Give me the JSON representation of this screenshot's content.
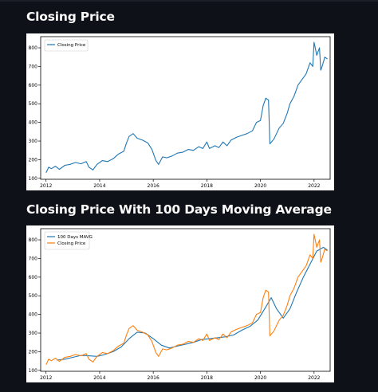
{
  "page": {
    "background": "#0e1117"
  },
  "headings": {
    "chart1": "Closing Price",
    "chart2": "Closing Price With 100 Days Moving Average"
  },
  "colors": {
    "blue": "#1f77b4",
    "orange": "#ff7f0e"
  },
  "chart_data": [
    {
      "type": "line",
      "title": "",
      "xlabel": "",
      "ylabel": "",
      "x_ticks": [
        "2012",
        "2014",
        "2016",
        "2018",
        "2020",
        "2022"
      ],
      "y_ticks": [
        "100",
        "200",
        "300",
        "400",
        "500",
        "600",
        "700",
        "800"
      ],
      "xlim": [
        2011.8,
        2022.6
      ],
      "ylim": [
        95,
        860
      ],
      "legend": {
        "placement": "top-left",
        "entries": [
          "Closing Price"
        ]
      },
      "series": [
        {
          "name": "Closing Price",
          "color": "#1f77b4",
          "points": [
            [
              2012.0,
              130
            ],
            [
              2012.1,
              160
            ],
            [
              2012.2,
              152
            ],
            [
              2012.35,
              165
            ],
            [
              2012.5,
              148
            ],
            [
              2012.7,
              170
            ],
            [
              2012.9,
              175
            ],
            [
              2013.1,
              185
            ],
            [
              2013.3,
              178
            ],
            [
              2013.5,
              190
            ],
            [
              2013.6,
              160
            ],
            [
              2013.75,
              145
            ],
            [
              2013.9,
              175
            ],
            [
              2014.1,
              195
            ],
            [
              2014.3,
              190
            ],
            [
              2014.5,
              205
            ],
            [
              2014.7,
              230
            ],
            [
              2014.9,
              245
            ],
            [
              2015.0,
              290
            ],
            [
              2015.1,
              325
            ],
            [
              2015.25,
              340
            ],
            [
              2015.4,
              315
            ],
            [
              2015.6,
              305
            ],
            [
              2015.8,
              290
            ],
            [
              2015.95,
              255
            ],
            [
              2016.1,
              195
            ],
            [
              2016.2,
              175
            ],
            [
              2016.35,
              215
            ],
            [
              2016.5,
              210
            ],
            [
              2016.7,
              220
            ],
            [
              2016.9,
              235
            ],
            [
              2017.1,
              240
            ],
            [
              2017.3,
              255
            ],
            [
              2017.5,
              250
            ],
            [
              2017.7,
              270
            ],
            [
              2017.85,
              260
            ],
            [
              2018.0,
              295
            ],
            [
              2018.1,
              260
            ],
            [
              2018.3,
              275
            ],
            [
              2018.45,
              265
            ],
            [
              2018.6,
              295
            ],
            [
              2018.75,
              275
            ],
            [
              2018.9,
              305
            ],
            [
              2019.1,
              320
            ],
            [
              2019.3,
              330
            ],
            [
              2019.5,
              340
            ],
            [
              2019.7,
              355
            ],
            [
              2019.85,
              400
            ],
            [
              2020.0,
              410
            ],
            [
              2020.1,
              490
            ],
            [
              2020.2,
              530
            ],
            [
              2020.3,
              520
            ],
            [
              2020.35,
              285
            ],
            [
              2020.5,
              310
            ],
            [
              2020.7,
              370
            ],
            [
              2020.85,
              395
            ],
            [
              2021.0,
              450
            ],
            [
              2021.1,
              500
            ],
            [
              2021.25,
              540
            ],
            [
              2021.4,
              600
            ],
            [
              2021.55,
              630
            ],
            [
              2021.7,
              660
            ],
            [
              2021.85,
              720
            ],
            [
              2021.95,
              700
            ],
            [
              2022.0,
              830
            ],
            [
              2022.1,
              760
            ],
            [
              2022.2,
              800
            ],
            [
              2022.25,
              680
            ],
            [
              2022.3,
              700
            ],
            [
              2022.4,
              750
            ],
            [
              2022.5,
              740
            ]
          ]
        }
      ]
    },
    {
      "type": "line",
      "title": "",
      "xlabel": "",
      "ylabel": "",
      "x_ticks": [
        "2012",
        "2014",
        "2016",
        "2018",
        "2020",
        "2022"
      ],
      "y_ticks": [
        "100",
        "200",
        "300",
        "400",
        "500",
        "600",
        "700",
        "800"
      ],
      "xlim": [
        2011.8,
        2022.6
      ],
      "ylim": [
        95,
        860
      ],
      "legend": {
        "placement": "top-left",
        "entries": [
          "100 Days MAVG",
          "Closing Price"
        ]
      },
      "series": [
        {
          "name": "100 Days MAVG",
          "color": "#1f77b4",
          "points": [
            [
              2012.4,
              155
            ],
            [
              2012.7,
              160
            ],
            [
              2013.0,
              170
            ],
            [
              2013.3,
              180
            ],
            [
              2013.6,
              178
            ],
            [
              2013.9,
              175
            ],
            [
              2014.2,
              185
            ],
            [
              2014.5,
              200
            ],
            [
              2014.8,
              225
            ],
            [
              2015.1,
              270
            ],
            [
              2015.4,
              305
            ],
            [
              2015.7,
              300
            ],
            [
              2016.0,
              270
            ],
            [
              2016.3,
              235
            ],
            [
              2016.6,
              220
            ],
            [
              2016.9,
              230
            ],
            [
              2017.2,
              240
            ],
            [
              2017.5,
              250
            ],
            [
              2017.8,
              265
            ],
            [
              2018.1,
              270
            ],
            [
              2018.4,
              275
            ],
            [
              2018.7,
              280
            ],
            [
              2019.0,
              290
            ],
            [
              2019.3,
              315
            ],
            [
              2019.6,
              335
            ],
            [
              2019.9,
              370
            ],
            [
              2020.2,
              440
            ],
            [
              2020.4,
              490
            ],
            [
              2020.6,
              430
            ],
            [
              2020.85,
              380
            ],
            [
              2021.1,
              430
            ],
            [
              2021.35,
              520
            ],
            [
              2021.6,
              600
            ],
            [
              2021.85,
              670
            ],
            [
              2022.1,
              740
            ],
            [
              2022.35,
              760
            ],
            [
              2022.5,
              745
            ]
          ]
        },
        {
          "name": "Closing Price",
          "color": "#ff7f0e",
          "points": [
            [
              2012.0,
              130
            ],
            [
              2012.1,
              160
            ],
            [
              2012.2,
              152
            ],
            [
              2012.35,
              165
            ],
            [
              2012.5,
              148
            ],
            [
              2012.7,
              170
            ],
            [
              2012.9,
              175
            ],
            [
              2013.1,
              185
            ],
            [
              2013.3,
              178
            ],
            [
              2013.5,
              190
            ],
            [
              2013.6,
              160
            ],
            [
              2013.75,
              145
            ],
            [
              2013.9,
              175
            ],
            [
              2014.1,
              195
            ],
            [
              2014.3,
              190
            ],
            [
              2014.5,
              205
            ],
            [
              2014.7,
              230
            ],
            [
              2014.9,
              245
            ],
            [
              2015.0,
              290
            ],
            [
              2015.1,
              325
            ],
            [
              2015.25,
              340
            ],
            [
              2015.4,
              315
            ],
            [
              2015.6,
              305
            ],
            [
              2015.8,
              290
            ],
            [
              2015.95,
              255
            ],
            [
              2016.1,
              195
            ],
            [
              2016.2,
              175
            ],
            [
              2016.35,
              215
            ],
            [
              2016.5,
              210
            ],
            [
              2016.7,
              220
            ],
            [
              2016.9,
              235
            ],
            [
              2017.1,
              240
            ],
            [
              2017.3,
              255
            ],
            [
              2017.5,
              250
            ],
            [
              2017.7,
              270
            ],
            [
              2017.85,
              260
            ],
            [
              2018.0,
              295
            ],
            [
              2018.1,
              260
            ],
            [
              2018.3,
              275
            ],
            [
              2018.45,
              265
            ],
            [
              2018.6,
              295
            ],
            [
              2018.75,
              275
            ],
            [
              2018.9,
              305
            ],
            [
              2019.1,
              320
            ],
            [
              2019.3,
              330
            ],
            [
              2019.5,
              340
            ],
            [
              2019.7,
              355
            ],
            [
              2019.85,
              400
            ],
            [
              2020.0,
              410
            ],
            [
              2020.1,
              490
            ],
            [
              2020.2,
              530
            ],
            [
              2020.3,
              520
            ],
            [
              2020.35,
              285
            ],
            [
              2020.5,
              310
            ],
            [
              2020.7,
              370
            ],
            [
              2020.85,
              395
            ],
            [
              2021.0,
              450
            ],
            [
              2021.1,
              500
            ],
            [
              2021.25,
              540
            ],
            [
              2021.4,
              600
            ],
            [
              2021.55,
              630
            ],
            [
              2021.7,
              660
            ],
            [
              2021.85,
              720
            ],
            [
              2021.95,
              700
            ],
            [
              2022.0,
              830
            ],
            [
              2022.1,
              760
            ],
            [
              2022.2,
              800
            ],
            [
              2022.25,
              680
            ],
            [
              2022.3,
              700
            ],
            [
              2022.4,
              750
            ],
            [
              2022.5,
              740
            ]
          ]
        }
      ]
    }
  ]
}
